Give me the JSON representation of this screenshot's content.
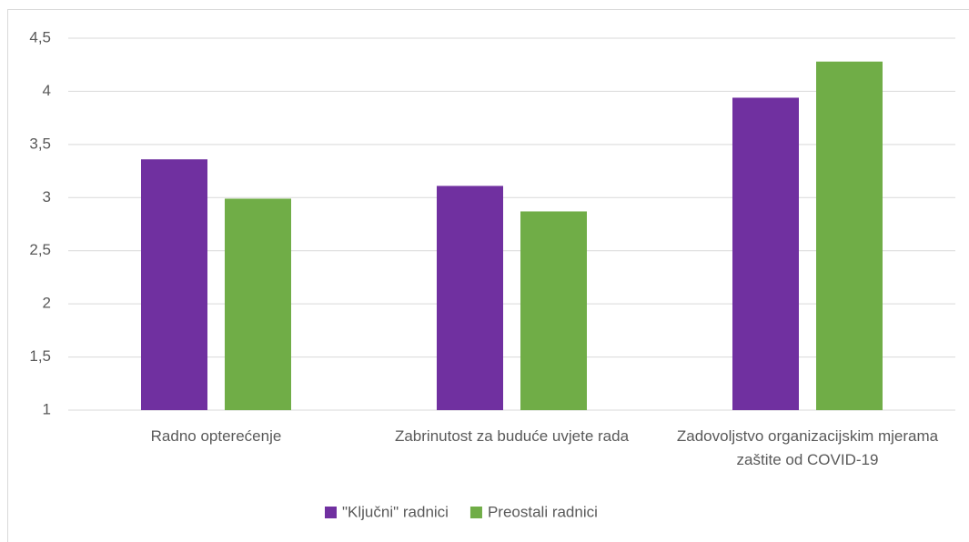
{
  "chart_data": {
    "type": "bar",
    "categories": [
      "Radno opterećenje",
      "Zabrinutost za buduće uvjete rada",
      "Zadovoljstvo organizacijskim mjerama zaštite od COVID-19"
    ],
    "series": [
      {
        "name": "\"Ključni\" radnici",
        "color": "#7030a0",
        "values": [
          3.36,
          3.11,
          3.94
        ]
      },
      {
        "name": "Preostali radnici",
        "color": "#70ad47",
        "values": [
          2.99,
          2.87,
          4.28
        ]
      }
    ],
    "ylim": [
      1,
      4.5
    ],
    "yticks": [
      1,
      {
        "value": 1.5,
        "label": "1,5"
      },
      2,
      {
        "value": 2.5,
        "label": "2,5"
      },
      3,
      {
        "value": 3.5,
        "label": "3,5"
      },
      4,
      {
        "value": 4.5,
        "label": "4,5"
      }
    ],
    "grid": true,
    "legend": "bottom"
  }
}
